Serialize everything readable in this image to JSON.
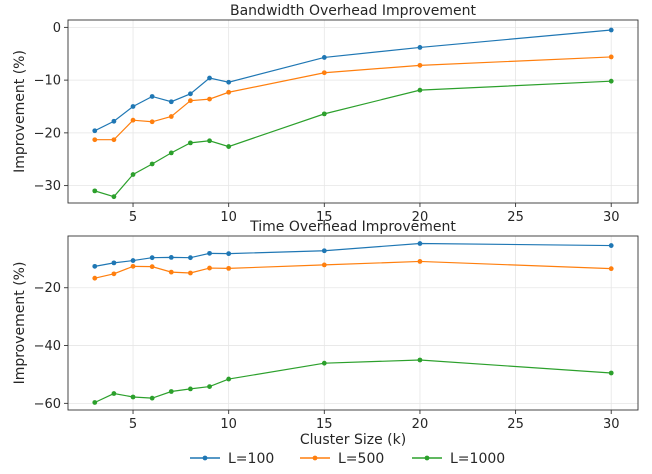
{
  "colors": {
    "L100": "#1f77b4",
    "L500": "#ff7f0e",
    "L1000": "#2ca02c",
    "grid": "#e6e6e6",
    "axis": "#333333"
  },
  "chart_data": [
    {
      "type": "line",
      "title": "Bandwidth Overhead Improvement",
      "xlabel": "",
      "ylabel": "Improvement (%)",
      "x": [
        3,
        4,
        5,
        6,
        7,
        8,
        9,
        10,
        15,
        20,
        30
      ],
      "xlim": [
        1.6,
        31.4
      ],
      "ylim": [
        -33.3,
        1.4
      ],
      "xticks": [
        5,
        10,
        15,
        20,
        25,
        30
      ],
      "yticks": [
        0,
        -10,
        -20,
        -30
      ],
      "grid": true,
      "series": [
        {
          "name": "L=100",
          "color": "#1f77b4",
          "values": [
            -19.6,
            -17.8,
            -15.0,
            -13.1,
            -14.1,
            -12.6,
            -9.6,
            -10.4,
            -5.7,
            -3.8,
            -0.5
          ]
        },
        {
          "name": "L=500",
          "color": "#ff7f0e",
          "values": [
            -21.3,
            -21.3,
            -17.6,
            -17.9,
            -16.9,
            -13.9,
            -13.6,
            -12.3,
            -8.6,
            -7.2,
            -5.6
          ]
        },
        {
          "name": "L=1000",
          "color": "#2ca02c",
          "values": [
            -31.0,
            -32.1,
            -27.9,
            -25.9,
            -23.8,
            -21.9,
            -21.5,
            -22.6,
            -16.4,
            -11.9,
            -10.2
          ]
        }
      ]
    },
    {
      "type": "line",
      "title": "Time Overhead Improvement",
      "xlabel": "Cluster Size (k)",
      "ylabel": "Improvement (%)",
      "x": [
        3,
        4,
        5,
        6,
        7,
        8,
        9,
        10,
        15,
        20,
        30
      ],
      "xlim": [
        1.6,
        31.4
      ],
      "ylim": [
        -62.3,
        -2.1
      ],
      "xticks": [
        5,
        10,
        15,
        20,
        25,
        30
      ],
      "yticks": [
        -20,
        -40,
        -60
      ],
      "grid": true,
      "series": [
        {
          "name": "L=100",
          "color": "#1f77b4",
          "values": [
            -12.6,
            -11.4,
            -10.6,
            -9.6,
            -9.5,
            -9.6,
            -8.1,
            -8.2,
            -7.2,
            -4.7,
            -5.4
          ]
        },
        {
          "name": "L=500",
          "color": "#ff7f0e",
          "values": [
            -16.7,
            -15.2,
            -12.6,
            -12.7,
            -14.6,
            -14.9,
            -13.2,
            -13.3,
            -12.1,
            -10.9,
            -13.4
          ]
        },
        {
          "name": "L=1000",
          "color": "#2ca02c",
          "values": [
            -59.7,
            -56.6,
            -57.8,
            -58.2,
            -55.9,
            -55.0,
            -54.2,
            -51.6,
            -46.1,
            -45.0,
            -49.5
          ]
        }
      ]
    }
  ],
  "legend": {
    "placement": "bottom-center",
    "items": [
      {
        "label": "L=100",
        "color": "#1f77b4"
      },
      {
        "label": "L=500",
        "color": "#ff7f0e"
      },
      {
        "label": "L=1000",
        "color": "#2ca02c"
      }
    ]
  }
}
